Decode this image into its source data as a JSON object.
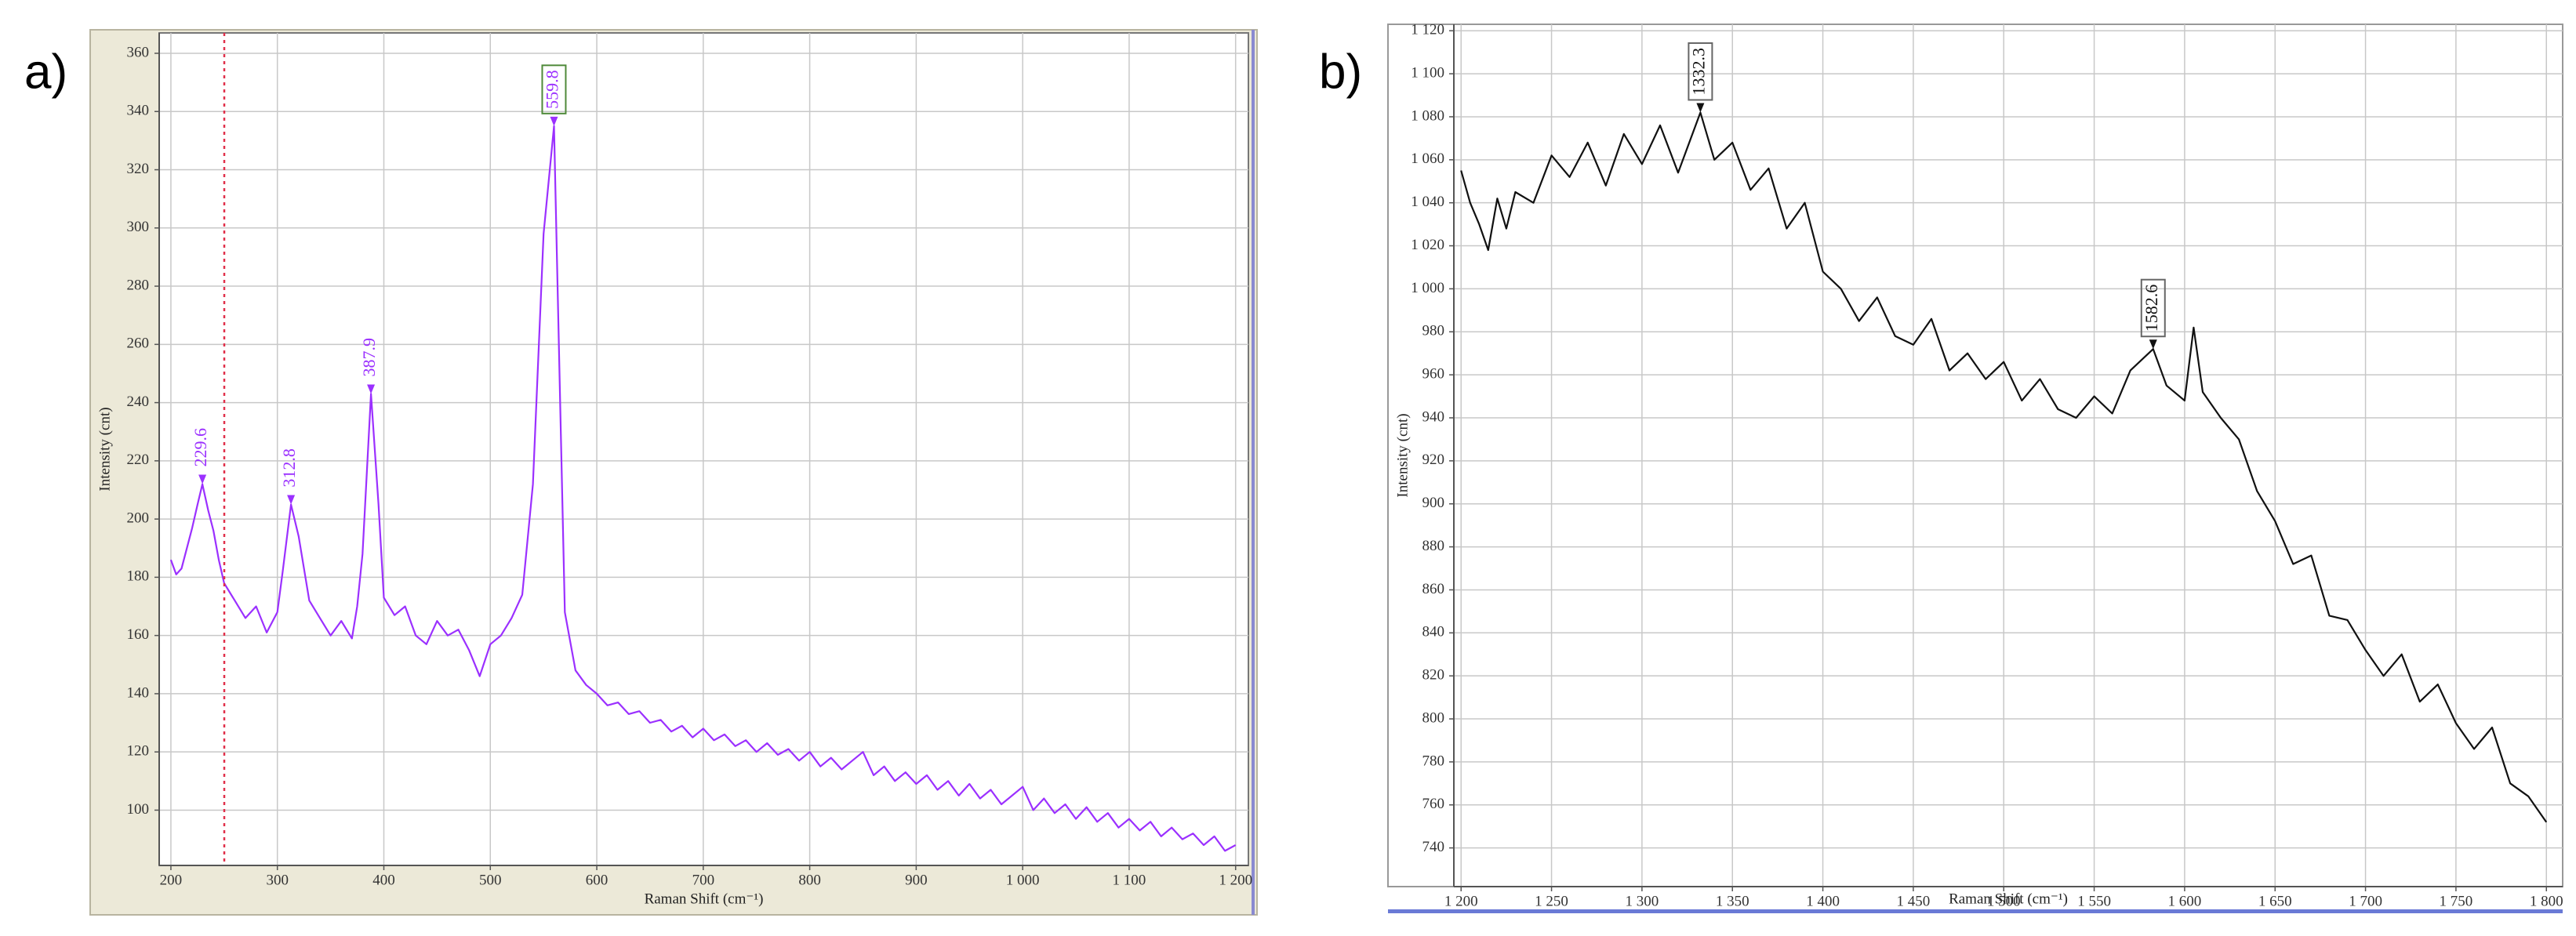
{
  "chart_data": [
    {
      "type": "line",
      "panel_label": "a)",
      "color": "#9b30ff",
      "x_label": "Raman Shift (cm⁻¹)",
      "y_label": "Intensity (cnt)",
      "xlim": [
        189,
        1212
      ],
      "ylim": [
        81,
        367
      ],
      "xticks": [
        200,
        300,
        400,
        500,
        600,
        700,
        800,
        900,
        {
          "value": 1000,
          "label": "1 000"
        },
        {
          "value": 1100,
          "label": "1 100"
        },
        {
          "value": 1200,
          "label": "1 200"
        }
      ],
      "yticks": [
        100,
        120,
        140,
        160,
        180,
        200,
        220,
        240,
        260,
        280,
        300,
        320,
        340,
        360
      ],
      "grid": true,
      "x": [
        200,
        205,
        210,
        215,
        220,
        225,
        229.6,
        235,
        240,
        245,
        250,
        255,
        260,
        270,
        280,
        290,
        300,
        305,
        312.8,
        320,
        330,
        340,
        350,
        360,
        370,
        375,
        380,
        387.9,
        395,
        400,
        410,
        420,
        430,
        440,
        450,
        460,
        470,
        480,
        490,
        500,
        510,
        520,
        530,
        540,
        550,
        559.8,
        565,
        570,
        580,
        590,
        600,
        610,
        620,
        630,
        640,
        650,
        660,
        670,
        680,
        690,
        700,
        710,
        720,
        730,
        740,
        750,
        760,
        770,
        780,
        790,
        800,
        810,
        820,
        830,
        840,
        850,
        860,
        870,
        880,
        890,
        900,
        910,
        920,
        930,
        940,
        950,
        960,
        970,
        980,
        990,
        1000,
        1010,
        1020,
        1030,
        1040,
        1050,
        1060,
        1070,
        1080,
        1090,
        1100,
        1110,
        1120,
        1130,
        1140,
        1150,
        1160,
        1170,
        1180,
        1190,
        1200
      ],
      "values": [
        186,
        181,
        183,
        190,
        197,
        205,
        212,
        203,
        196,
        186,
        178,
        175,
        172,
        166,
        170,
        161,
        168,
        182,
        205,
        194,
        172,
        166,
        160,
        165,
        159,
        170,
        188,
        243,
        205,
        173,
        167,
        170,
        160,
        157,
        165,
        160,
        162,
        155,
        146,
        157,
        160,
        166,
        174,
        212,
        298,
        335,
        250,
        168,
        148,
        143,
        140,
        136,
        137,
        133,
        134,
        130,
        131,
        127,
        129,
        125,
        128,
        124,
        126,
        122,
        124,
        120,
        123,
        119,
        121,
        117,
        120,
        115,
        118,
        114,
        117,
        120,
        112,
        115,
        110,
        113,
        109,
        112,
        107,
        110,
        105,
        109,
        104,
        107,
        102,
        105,
        108,
        100,
        104,
        99,
        102,
        97,
        101,
        96,
        99,
        94,
        97,
        93,
        96,
        91,
        94,
        90,
        92,
        88,
        91,
        86,
        88
      ],
      "annotations": [
        {
          "text": "229.6",
          "x": 229.6,
          "y": 212
        },
        {
          "text": "312.8",
          "x": 312.8,
          "y": 205
        },
        {
          "text": "387.9",
          "x": 387.9,
          "y": 243
        },
        {
          "text": "559.8",
          "x": 559.8,
          "y": 335
        }
      ]
    },
    {
      "type": "line",
      "panel_label": "b)",
      "color": "#111111",
      "x_label": "Raman Shift (cm⁻¹)",
      "y_label": "Intensity (cnt)",
      "xlim": [
        1196,
        1809
      ],
      "ylim": [
        722,
        1123
      ],
      "xticks": [
        {
          "value": 1200,
          "label": "1 200"
        },
        {
          "value": 1250,
          "label": "1 250"
        },
        {
          "value": 1300,
          "label": "1 300"
        },
        {
          "value": 1350,
          "label": "1 350"
        },
        {
          "value": 1400,
          "label": "1 400"
        },
        {
          "value": 1450,
          "label": "1 450"
        },
        {
          "value": 1500,
          "label": "1 500"
        },
        {
          "value": 1550,
          "label": "1 550"
        },
        {
          "value": 1600,
          "label": "1 600"
        },
        {
          "value": 1650,
          "label": "1 650"
        },
        {
          "value": 1700,
          "label": "1 700"
        },
        {
          "value": 1750,
          "label": "1 750"
        },
        {
          "value": 1800,
          "label": "1 800"
        }
      ],
      "yticks": [
        740,
        760,
        780,
        800,
        820,
        840,
        860,
        880,
        900,
        920,
        940,
        960,
        980,
        {
          "value": 1000,
          "label": "1 000"
        },
        {
          "value": 1020,
          "label": "1 020"
        },
        {
          "value": 1040,
          "label": "1 040"
        },
        {
          "value": 1060,
          "label": "1 060"
        },
        {
          "value": 1080,
          "label": "1 080"
        },
        {
          "value": 1100,
          "label": "1 100"
        },
        {
          "value": 1120,
          "label": "1 120"
        }
      ],
      "grid": true,
      "x": [
        1200,
        1205,
        1210,
        1215,
        1220,
        1225,
        1230,
        1240,
        1250,
        1260,
        1270,
        1280,
        1290,
        1300,
        1310,
        1320,
        1332.3,
        1340,
        1350,
        1360,
        1370,
        1380,
        1390,
        1400,
        1410,
        1420,
        1430,
        1440,
        1450,
        1460,
        1470,
        1480,
        1490,
        1500,
        1510,
        1520,
        1530,
        1540,
        1550,
        1560,
        1570,
        1582.6,
        1590,
        1600,
        1605,
        1610,
        1620,
        1630,
        1640,
        1650,
        1660,
        1670,
        1680,
        1690,
        1700,
        1710,
        1720,
        1730,
        1740,
        1750,
        1760,
        1770,
        1780,
        1790,
        1800
      ],
      "values": [
        1055,
        1040,
        1030,
        1018,
        1042,
        1028,
        1045,
        1040,
        1062,
        1052,
        1068,
        1048,
        1072,
        1058,
        1076,
        1054,
        1082,
        1060,
        1068,
        1046,
        1056,
        1028,
        1040,
        1008,
        1000,
        985,
        996,
        978,
        974,
        986,
        962,
        970,
        958,
        966,
        948,
        958,
        944,
        940,
        950,
        942,
        962,
        972,
        955,
        948,
        982,
        952,
        940,
        930,
        906,
        892,
        872,
        876,
        848,
        846,
        832,
        820,
        830,
        808,
        816,
        798,
        786,
        796,
        770,
        764,
        752
      ],
      "annotations": [
        {
          "text": "1332.3",
          "x": 1332.3,
          "y": 1082
        },
        {
          "text": "1582.6",
          "x": 1582.6,
          "y": 972
        }
      ]
    }
  ]
}
